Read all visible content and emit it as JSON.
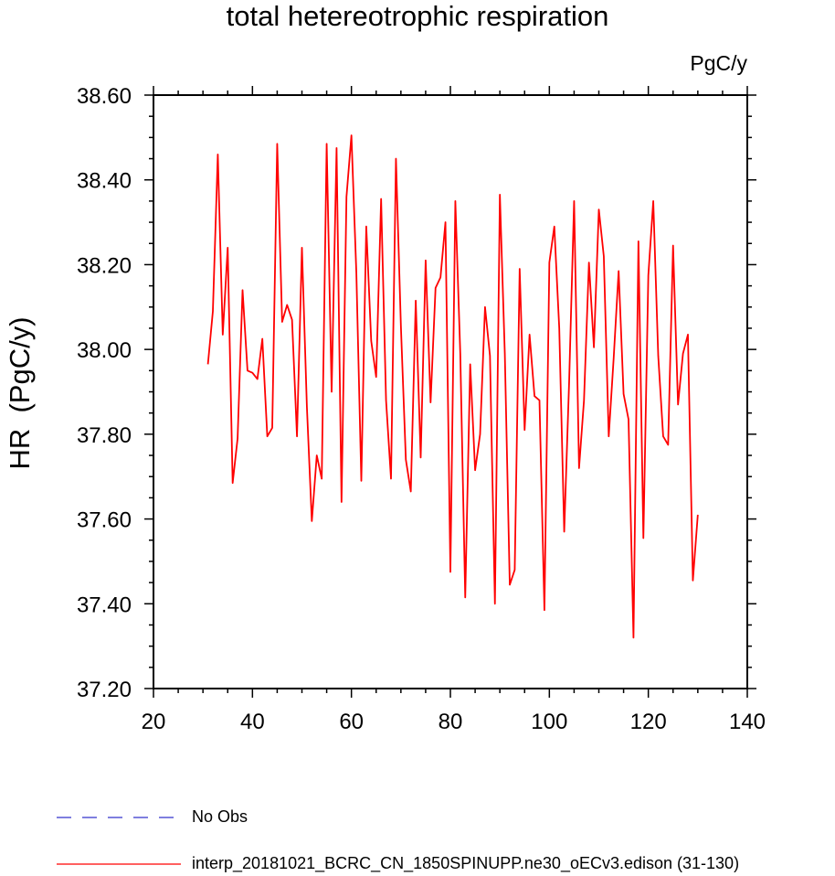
{
  "chart_data": {
    "type": "line",
    "title": "total hetereotrophic respiration",
    "units_label": "PgC/y",
    "ylabel": "HR  (PgC/y)",
    "xlabel": "",
    "xlim": [
      20,
      140
    ],
    "ylim": [
      37.2,
      38.6
    ],
    "xticks": [
      "20",
      "40",
      "60",
      "80",
      "100",
      "120",
      "140"
    ],
    "yticks": [
      "37.20",
      "37.40",
      "37.60",
      "37.80",
      "38.00",
      "38.20",
      "38.40",
      "38.60"
    ],
    "grid": false,
    "legend_position": "bottom-left",
    "series": [
      {
        "name": "interp_20181021_BCRC_CN_1850SPINUPP.ne30_oECv3.edison (31-130)",
        "color": "#ff0000",
        "style": "solid",
        "x": [
          31,
          32,
          33,
          34,
          35,
          36,
          37,
          38,
          39,
          40,
          41,
          42,
          43,
          44,
          45,
          46,
          47,
          48,
          49,
          50,
          51,
          52,
          53,
          54,
          55,
          56,
          57,
          58,
          59,
          60,
          61,
          62,
          63,
          64,
          65,
          66,
          67,
          68,
          69,
          70,
          71,
          72,
          73,
          74,
          75,
          76,
          77,
          78,
          79,
          80,
          81,
          82,
          83,
          84,
          85,
          86,
          87,
          88,
          89,
          90,
          91,
          92,
          93,
          94,
          95,
          96,
          97,
          98,
          99,
          100,
          101,
          102,
          103,
          104,
          105,
          106,
          107,
          108,
          109,
          110,
          111,
          112,
          113,
          114,
          115,
          116,
          117,
          118,
          119,
          120,
          121,
          122,
          123,
          124,
          125,
          126,
          127,
          128,
          129,
          130
        ],
        "y": [
          37.965,
          38.09,
          38.46,
          38.035,
          38.24,
          37.685,
          37.79,
          38.14,
          37.95,
          37.945,
          37.93,
          38.025,
          37.795,
          37.815,
          38.485,
          38.065,
          38.105,
          38.07,
          37.795,
          38.24,
          37.865,
          37.595,
          37.75,
          37.695,
          38.485,
          37.9,
          38.475,
          37.64,
          38.36,
          38.505,
          38.18,
          37.69,
          38.29,
          38.02,
          37.935,
          38.355,
          37.88,
          37.695,
          38.45,
          38.055,
          37.74,
          37.665,
          38.115,
          37.745,
          38.21,
          37.875,
          38.145,
          38.17,
          38.3,
          37.475,
          38.35,
          37.99,
          37.415,
          37.965,
          37.715,
          37.8,
          38.1,
          37.985,
          37.4,
          38.365,
          37.99,
          37.445,
          37.48,
          38.19,
          37.81,
          38.035,
          37.89,
          37.88,
          37.385,
          38.205,
          38.29,
          38.05,
          37.57,
          37.925,
          38.35,
          37.72,
          37.88,
          38.205,
          38.005,
          38.33,
          38.22,
          37.795,
          37.98,
          38.185,
          37.895,
          37.835,
          37.32,
          38.255,
          37.555,
          38.175,
          38.35,
          37.985,
          37.795,
          37.775,
          38.245,
          37.87,
          37.99,
          38.035,
          37.455,
          37.61
        ]
      }
    ],
    "legend": [
      {
        "label": "No Obs",
        "color": "#3333cc",
        "style": "dashed"
      },
      {
        "label": "interp_20181021_BCRC_CN_1850SPINUPP.ne30_oECv3.edison (31-130)",
        "color": "#ff0000",
        "style": "solid"
      }
    ]
  }
}
